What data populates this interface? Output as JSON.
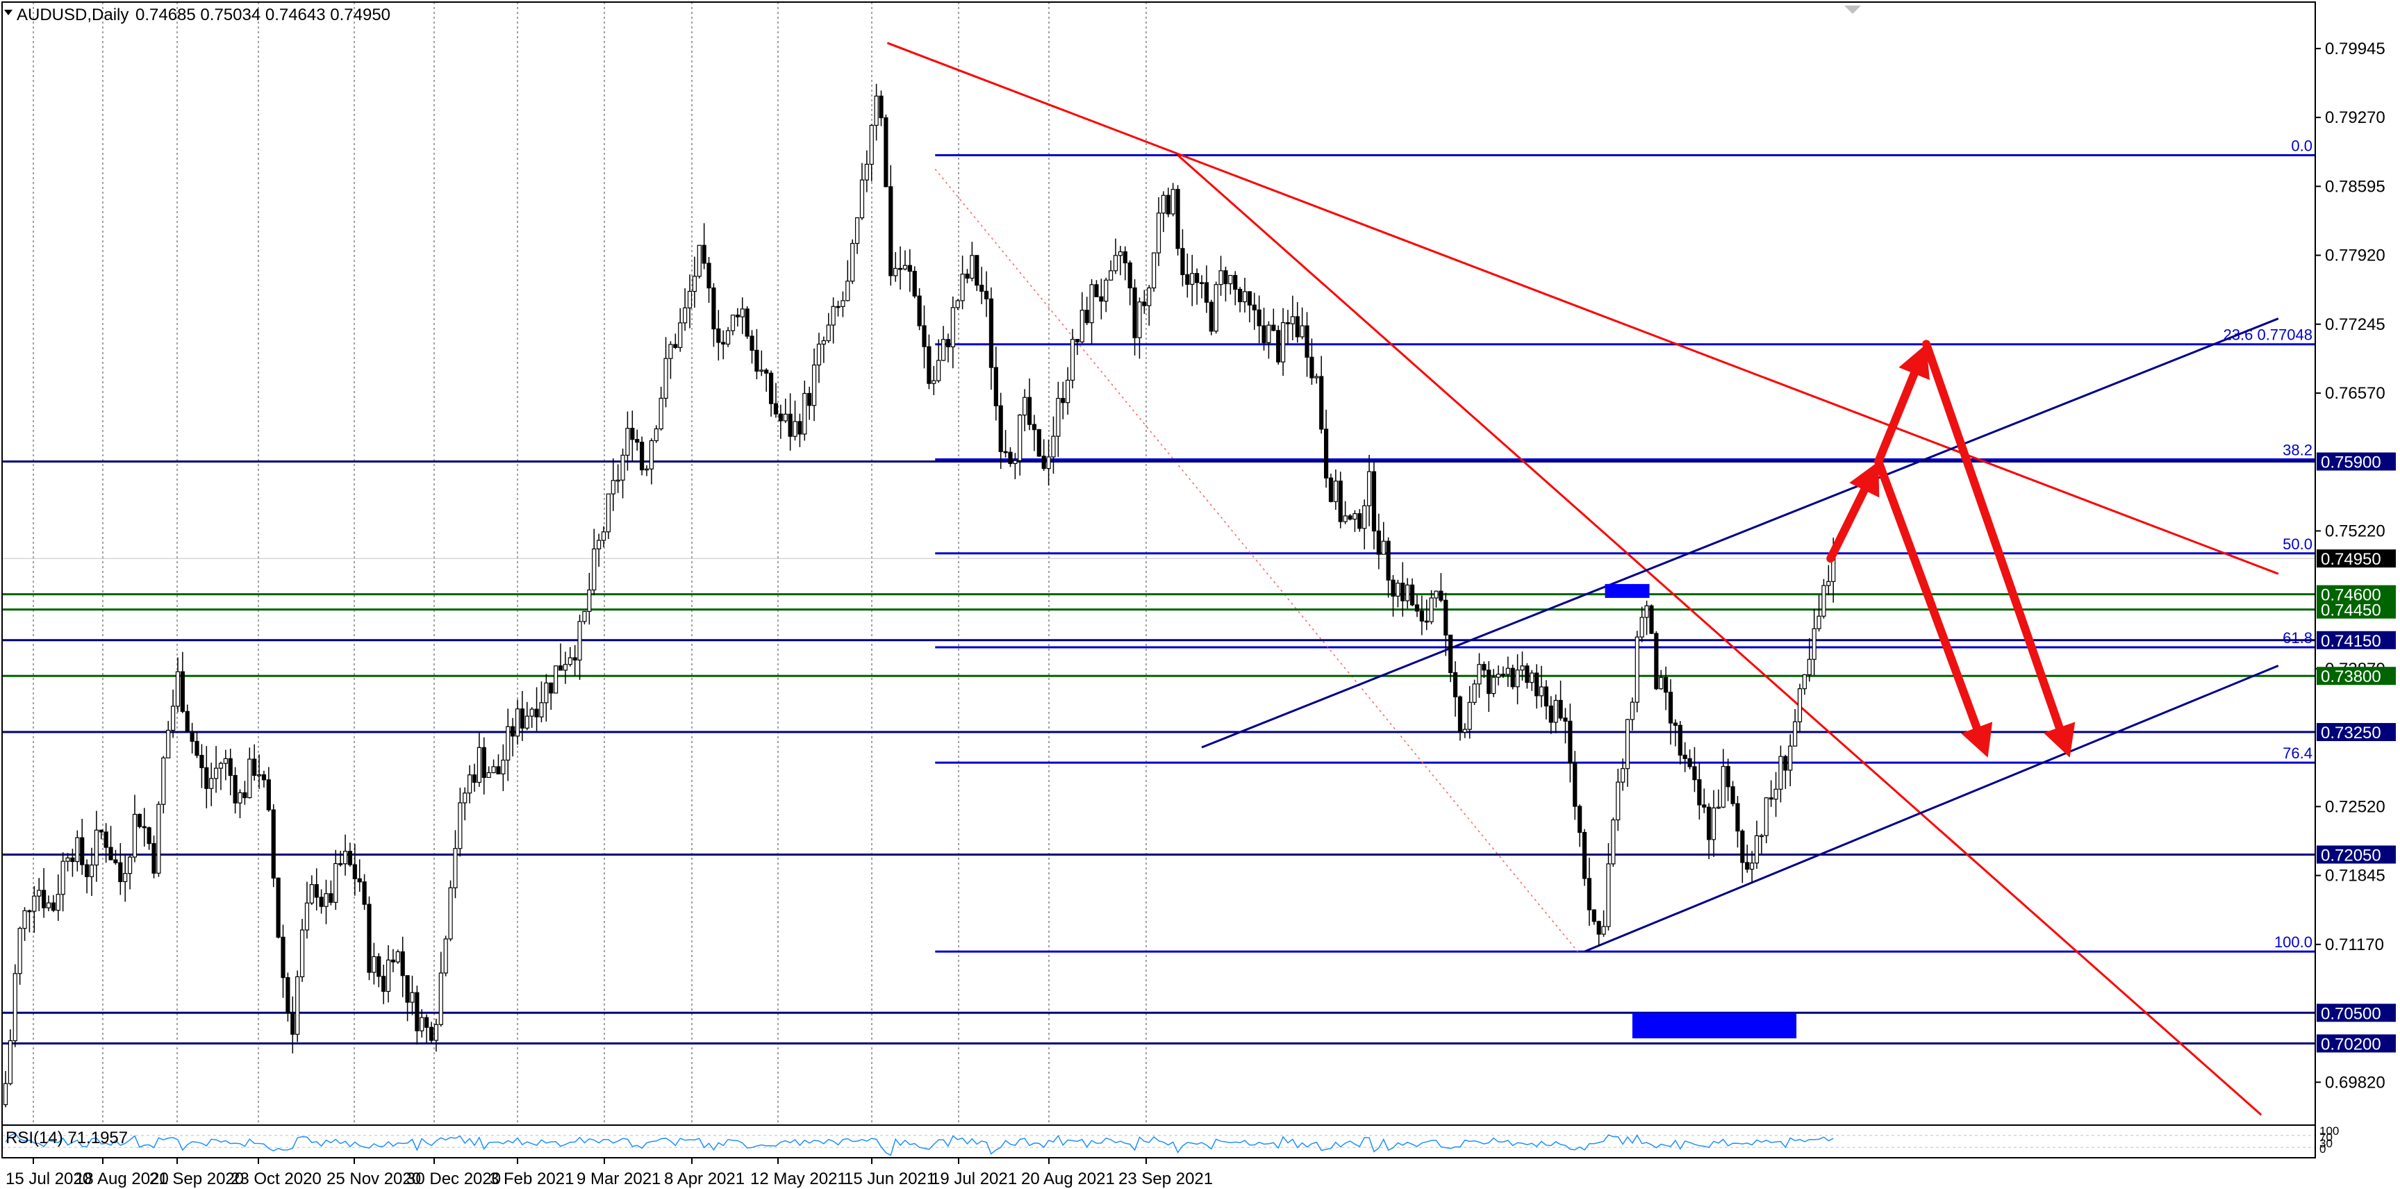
{
  "header": {
    "symbol": "AUDUSD,Daily",
    "ohlc": "0.74685 0.75034 0.74643 0.74950",
    "rsi_label": "RSI(14) 71.1957"
  },
  "chart_data": {
    "type": "candlestick",
    "symbol": "AUDUSD",
    "timeframe": "Daily",
    "ylim": [
      0.694,
      0.804
    ],
    "price_ticks": [
      "0.79945",
      "0.79270",
      "0.78595",
      "0.77920",
      "0.77245",
      "0.76570",
      "0.75220",
      "0.73870",
      "0.72520",
      "0.71845",
      "0.71170",
      "0.69820"
    ],
    "date_ticks": [
      "15 Jul 2020",
      "18 Aug 2020",
      "21 Sep 2020",
      "23 Oct 2020",
      "25 Nov 2020",
      "30 Dec 2020",
      "3 Feb 2021",
      "9 Mar 2021",
      "8 Apr 2021",
      "12 May 2021",
      "15 Jun 2021",
      "19 Jul 2021",
      "20 Aug 2021",
      "23 Sep 2021"
    ],
    "current_price": "0.74950",
    "price_path": [
      [
        0,
        0.696
      ],
      [
        2,
        0.699
      ],
      [
        5,
        0.712
      ],
      [
        10,
        0.718
      ],
      [
        15,
        0.715
      ],
      [
        20,
        0.722
      ],
      [
        25,
        0.719
      ],
      [
        30,
        0.723
      ],
      [
        35,
        0.718
      ],
      [
        40,
        0.725
      ],
      [
        45,
        0.72
      ],
      [
        48,
        0.731
      ],
      [
        52,
        0.738
      ],
      [
        55,
        0.733
      ],
      [
        60,
        0.727
      ],
      [
        65,
        0.73
      ],
      [
        70,
        0.726
      ],
      [
        75,
        0.73
      ],
      [
        78,
        0.725
      ],
      [
        82,
        0.71
      ],
      [
        85,
        0.703
      ],
      [
        88,
        0.712
      ],
      [
        92,
        0.718
      ],
      [
        95,
        0.715
      ],
      [
        100,
        0.72
      ],
      [
        105,
        0.718
      ],
      [
        108,
        0.71
      ],
      [
        112,
        0.708
      ],
      [
        115,
        0.712
      ],
      [
        120,
        0.706
      ],
      [
        125,
        0.703
      ],
      [
        128,
        0.706
      ],
      [
        132,
        0.72
      ],
      [
        136,
        0.727
      ],
      [
        140,
        0.73
      ],
      [
        145,
        0.728
      ],
      [
        150,
        0.733
      ],
      [
        155,
        0.735
      ],
      [
        160,
        0.737
      ],
      [
        165,
        0.74
      ],
      [
        170,
        0.742
      ],
      [
        173,
        0.748
      ],
      [
        176,
        0.752
      ],
      [
        180,
        0.757
      ],
      [
        185,
        0.763
      ],
      [
        188,
        0.758
      ],
      [
        192,
        0.764
      ],
      [
        196,
        0.77
      ],
      [
        200,
        0.773
      ],
      [
        204,
        0.779
      ],
      [
        208,
        0.774
      ],
      [
        212,
        0.77
      ],
      [
        216,
        0.775
      ],
      [
        220,
        0.77
      ],
      [
        224,
        0.766
      ],
      [
        228,
        0.763
      ],
      [
        232,
        0.762
      ],
      [
        236,
        0.765
      ],
      [
        240,
        0.77
      ],
      [
        244,
        0.773
      ],
      [
        248,
        0.776
      ],
      [
        252,
        0.785
      ],
      [
        256,
        0.796
      ],
      [
        258,
        0.793
      ],
      [
        260,
        0.778
      ],
      [
        263,
        0.778
      ],
      [
        266,
        0.777
      ],
      [
        269,
        0.773
      ],
      [
        272,
        0.766
      ],
      [
        276,
        0.77
      ],
      [
        280,
        0.775
      ],
      [
        284,
        0.778
      ],
      [
        288,
        0.775
      ],
      [
        292,
        0.762
      ],
      [
        296,
        0.76
      ],
      [
        300,
        0.764
      ],
      [
        304,
        0.758
      ],
      [
        308,
        0.762
      ],
      [
        312,
        0.768
      ],
      [
        316,
        0.772
      ],
      [
        320,
        0.776
      ],
      [
        324,
        0.775
      ],
      [
        328,
        0.78
      ],
      [
        332,
        0.772
      ],
      [
        336,
        0.776
      ],
      [
        340,
        0.786
      ],
      [
        343,
        0.784
      ],
      [
        346,
        0.778
      ],
      [
        350,
        0.776
      ],
      [
        354,
        0.773
      ],
      [
        358,
        0.778
      ],
      [
        362,
        0.775
      ],
      [
        366,
        0.773
      ],
      [
        370,
        0.772
      ],
      [
        374,
        0.77
      ],
      [
        378,
        0.773
      ],
      [
        382,
        0.771
      ],
      [
        385,
        0.767
      ],
      [
        388,
        0.758
      ],
      [
        392,
        0.754
      ],
      [
        396,
        0.752
      ],
      [
        400,
        0.757
      ],
      [
        404,
        0.75
      ],
      [
        408,
        0.747
      ],
      [
        412,
        0.746
      ],
      [
        416,
        0.742
      ],
      [
        420,
        0.748
      ],
      [
        424,
        0.737
      ],
      [
        428,
        0.733
      ],
      [
        432,
        0.739
      ],
      [
        436,
        0.736
      ],
      [
        440,
        0.74
      ],
      [
        444,
        0.737
      ],
      [
        448,
        0.738
      ],
      [
        452,
        0.734
      ],
      [
        456,
        0.736
      ],
      [
        460,
        0.727
      ],
      [
        464,
        0.718
      ],
      [
        466,
        0.714
      ],
      [
        468,
        0.712
      ],
      [
        472,
        0.724
      ],
      [
        476,
        0.732
      ],
      [
        479,
        0.742
      ],
      [
        481,
        0.746
      ],
      [
        484,
        0.738
      ],
      [
        488,
        0.734
      ],
      [
        492,
        0.73
      ],
      [
        496,
        0.726
      ],
      [
        500,
        0.723
      ],
      [
        504,
        0.728
      ],
      [
        508,
        0.723
      ],
      [
        510,
        0.719
      ],
      [
        512,
        0.721
      ],
      [
        516,
        0.724
      ],
      [
        520,
        0.728
      ],
      [
        524,
        0.732
      ],
      [
        528,
        0.737
      ],
      [
        531,
        0.742
      ],
      [
        534,
        0.7465
      ],
      [
        536,
        0.7495
      ]
    ],
    "rsi": {
      "period": 14,
      "value": 71.1957,
      "scale_labels": [
        "100",
        "70",
        "30",
        "0"
      ]
    },
    "horizontal_levels": [
      {
        "price": 0.759,
        "label": "0.75900",
        "color": "#00007a",
        "tag_bg": "#00007a"
      },
      {
        "price": 0.746,
        "label": "0.74600",
        "color": "#006400",
        "tag_bg": "#006400"
      },
      {
        "price": 0.7445,
        "label": "0.74450",
        "color": "#006400",
        "tag_bg": "#006400"
      },
      {
        "price": 0.7415,
        "label": "0.74150",
        "color": "#00007a",
        "tag_bg": "#00007a"
      },
      {
        "price": 0.738,
        "label": "0.73800",
        "color": "#006400",
        "tag_bg": "#006400"
      },
      {
        "price": 0.7325,
        "label": "0.73250",
        "color": "#00007a",
        "tag_bg": "#00007a"
      },
      {
        "price": 0.7205,
        "label": "0.72050",
        "color": "#00007a",
        "tag_bg": "#00007a"
      },
      {
        "price": 0.705,
        "label": "0.70500",
        "color": "#00007a",
        "tag_bg": "#00007a"
      },
      {
        "price": 0.702,
        "label": "0.70200",
        "color": "#00007a",
        "tag_bg": "#00007a"
      }
    ],
    "fibonacci": {
      "high": 0.789,
      "low": 0.711,
      "levels": [
        {
          "ratio": "0.0",
          "price": 0.789,
          "label": "0.0"
        },
        {
          "ratio": "23.6",
          "price": 0.77048,
          "label": "23.6 0.77048"
        },
        {
          "ratio": "38.2",
          "price": 0.7592,
          "label": "38.2"
        },
        {
          "ratio": "50.0",
          "price": 0.75,
          "label": "50.0"
        },
        {
          "ratio": "61.8",
          "price": 0.7408,
          "label": "61.8"
        },
        {
          "ratio": "76.4",
          "price": 0.7295,
          "label": "76.4"
        },
        {
          "ratio": "100.0",
          "price": 0.711,
          "label": "100.0"
        }
      ]
    },
    "trendlines": [
      {
        "name": "resistance-long",
        "color": "#ff0000",
        "from": [
          258,
          0.8
        ],
        "to": [
          665,
          0.748
        ]
      },
      {
        "name": "resistance-steep",
        "color": "#ff0000",
        "from": [
          343,
          0.789
        ],
        "to": [
          660,
          0.695
        ]
      },
      {
        "name": "channel-upper",
        "color": "#00008b",
        "from": [
          350,
          0.731
        ],
        "to": [
          665,
          0.773
        ]
      },
      {
        "name": "channel-lower",
        "color": "#00008b",
        "from": [
          462,
          0.711
        ],
        "to": [
          665,
          0.739
        ]
      }
    ],
    "zones": [
      {
        "from": [
          468,
          0.747
        ],
        "to": [
          481,
          0.746
        ],
        "color": "#0000ff"
      },
      {
        "from": [
          476,
          0.705
        ],
        "to": [
          524,
          0.7025
        ],
        "color": "#0000ff"
      }
    ],
    "forecast_arrows": [
      {
        "from": [
          534,
          0.7495
        ],
        "to": [
          548,
          0.759
        ]
      },
      {
        "from": [
          548,
          0.759
        ],
        "to": [
          562,
          0.7705
        ]
      },
      {
        "from": [
          548,
          0.759
        ],
        "to": [
          580,
          0.73
        ]
      },
      {
        "from": [
          562,
          0.7705
        ],
        "to": [
          604,
          0.73
        ]
      }
    ]
  }
}
